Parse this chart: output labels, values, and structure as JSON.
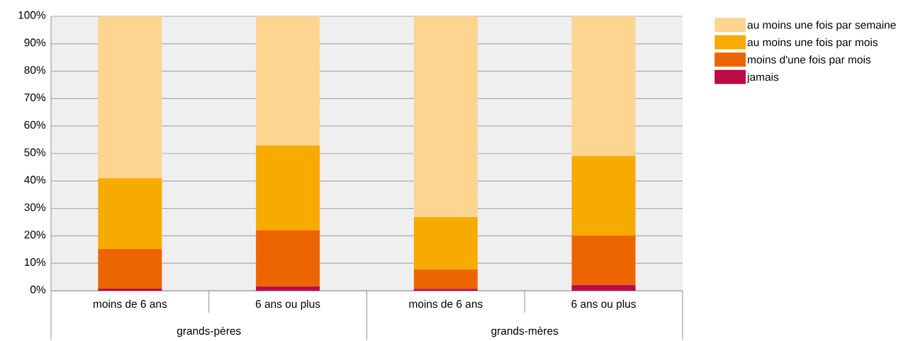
{
  "chart_data": {
    "type": "bar",
    "stacked": true,
    "categories": [
      "moins de 6 ans",
      "6 ans ou plus",
      "moins de 6 ans",
      "6 ans ou plus"
    ],
    "annotations": [
      "grands-pères",
      "grands-mères"
    ],
    "series": [
      {
        "name": "jamais",
        "color": "#be0a46",
        "values": [
          0.8,
          1.6,
          0.7,
          2.1
        ]
      },
      {
        "name": "moins d'une fois par mois",
        "color": "#ec6500",
        "values": [
          14.4,
          20.5,
          7.0,
          18.0
        ]
      },
      {
        "name": "au moins une fois par mois",
        "color": "#f7ab00",
        "values": [
          25.8,
          30.8,
          19.1,
          29.0
        ]
      },
      {
        "name": "au moins une fois par semaine",
        "color": "#fdd591",
        "values": [
          59.0,
          47.1,
          73.2,
          50.9
        ]
      }
    ],
    "ylim": [
      0,
      100
    ],
    "yticks": [
      {
        "value": 0,
        "label": "0%"
      },
      {
        "value": 10,
        "label": "10%"
      },
      {
        "value": 20,
        "label": "20%"
      },
      {
        "value": 30,
        "label": "30%"
      },
      {
        "value": 40,
        "label": "40%"
      },
      {
        "value": 50,
        "label": "50%"
      },
      {
        "value": 60,
        "label": "60%"
      },
      {
        "value": 70,
        "label": "70%"
      },
      {
        "value": 80,
        "label": "80%"
      },
      {
        "value": 90,
        "label": "90%"
      },
      {
        "value": 100,
        "label": "100%"
      }
    ],
    "grid": "y",
    "legend": "top right"
  }
}
